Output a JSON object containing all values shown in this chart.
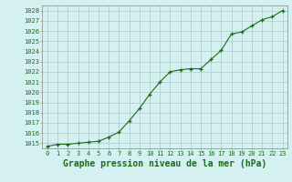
{
  "x": [
    0,
    1,
    2,
    3,
    4,
    5,
    6,
    7,
    8,
    9,
    10,
    11,
    12,
    13,
    14,
    15,
    16,
    17,
    18,
    19,
    20,
    21,
    22,
    23
  ],
  "y": [
    1014.7,
    1014.9,
    1014.9,
    1015.0,
    1015.1,
    1015.2,
    1015.6,
    1016.1,
    1017.2,
    1018.4,
    1019.8,
    1021.0,
    1022.0,
    1022.2,
    1022.3,
    1022.3,
    1023.2,
    1024.1,
    1025.7,
    1025.9,
    1026.5,
    1027.1,
    1027.4,
    1028.0
  ],
  "ylim": [
    1014.5,
    1028.5
  ],
  "yticks": [
    1015,
    1016,
    1017,
    1018,
    1019,
    1020,
    1021,
    1022,
    1023,
    1024,
    1025,
    1026,
    1027,
    1028
  ],
  "xticks": [
    0,
    1,
    2,
    3,
    4,
    5,
    6,
    7,
    8,
    9,
    10,
    11,
    12,
    13,
    14,
    15,
    16,
    17,
    18,
    19,
    20,
    21,
    22,
    23
  ],
  "xlabel": "Graphe pression niveau de la mer (hPa)",
  "line_color": "#1a6b1a",
  "marker": "+",
  "bg_color": "#d4f0f0",
  "grid_color": "#b0c8c8",
  "text_color": "#1a6b1a",
  "tick_fontsize": 5.0,
  "xlabel_fontsize": 7.0
}
